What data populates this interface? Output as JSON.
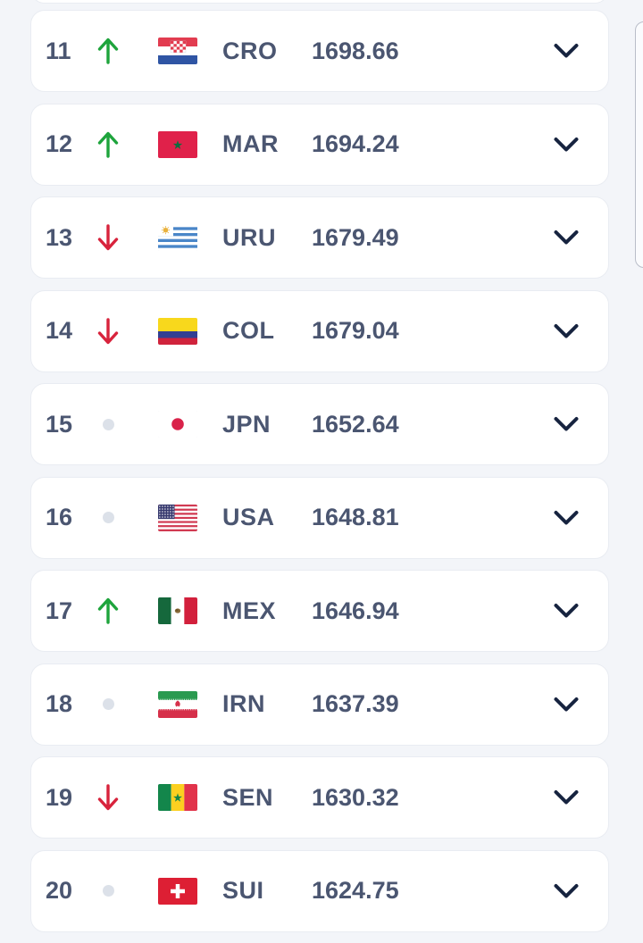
{
  "colors": {
    "page_bg": "#f3f5f9",
    "card_border": "#e9ecf2",
    "text": "#4b5671",
    "chevron": "#16233f",
    "trend_up": "#1ea43c",
    "trend_down": "#d8233c",
    "trend_equal": "#dce1e9"
  },
  "rankings": {
    "rows": [
      {
        "rank": "11",
        "trend": "up",
        "code": "CRO",
        "points": "1698.66",
        "flag": "croatia-flag"
      },
      {
        "rank": "12",
        "trend": "up",
        "code": "MAR",
        "points": "1694.24",
        "flag": "morocco-flag"
      },
      {
        "rank": "13",
        "trend": "down",
        "code": "URU",
        "points": "1679.49",
        "flag": "uruguay-flag"
      },
      {
        "rank": "14",
        "trend": "down",
        "code": "COL",
        "points": "1679.04",
        "flag": "colombia-flag"
      },
      {
        "rank": "15",
        "trend": "equal",
        "code": "JPN",
        "points": "1652.64",
        "flag": "japan-flag"
      },
      {
        "rank": "16",
        "trend": "equal",
        "code": "USA",
        "points": "1648.81",
        "flag": "usa-flag"
      },
      {
        "rank": "17",
        "trend": "up",
        "code": "MEX",
        "points": "1646.94",
        "flag": "mexico-flag"
      },
      {
        "rank": "18",
        "trend": "equal",
        "code": "IRN",
        "points": "1637.39",
        "flag": "iran-flag"
      },
      {
        "rank": "19",
        "trend": "down",
        "code": "SEN",
        "points": "1630.32",
        "flag": "senegal-flag"
      },
      {
        "rank": "20",
        "trend": "equal",
        "code": "SUI",
        "points": "1624.75",
        "flag": "switzerland-flag"
      }
    ]
  }
}
